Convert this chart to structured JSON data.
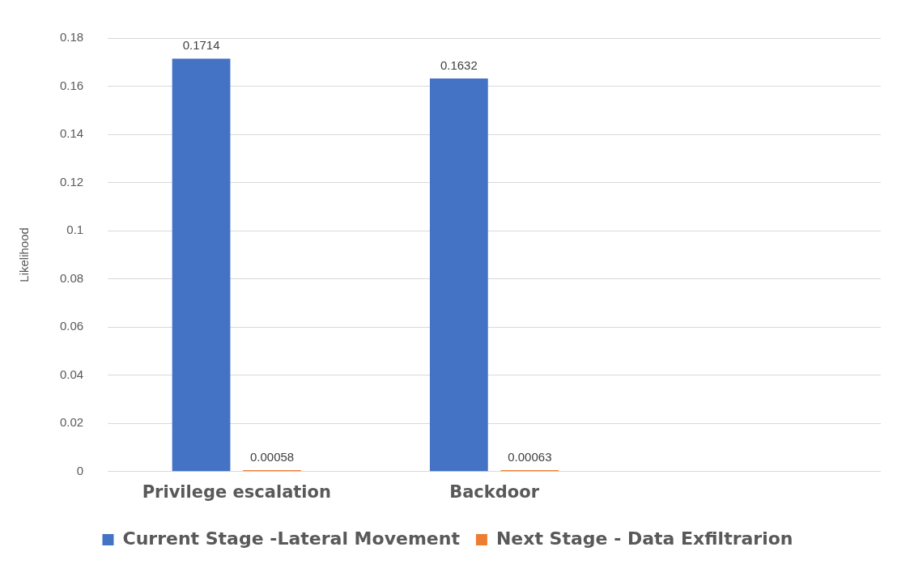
{
  "chart_data": {
    "type": "bar",
    "ylabel": "Likelihood",
    "categories": [
      "Privilege escalation",
      "Backdoor",
      null
    ],
    "series": [
      {
        "name": "Current Stage -Lateral Movement",
        "color": "#4472c4",
        "values": [
          0.1714,
          0.1632,
          null
        ]
      },
      {
        "name": "Next Stage - Data Exfiltrarion",
        "color": "#ed7d31",
        "values": [
          0.00058,
          0.00063,
          null
        ]
      }
    ],
    "ylim": [
      0,
      0.18
    ],
    "yticks": [
      0,
      0.02,
      0.04,
      0.06,
      0.08,
      0.1,
      0.12,
      0.14,
      0.16,
      0.18
    ],
    "grid": "y",
    "legend": "bottom",
    "data_labels": true
  }
}
